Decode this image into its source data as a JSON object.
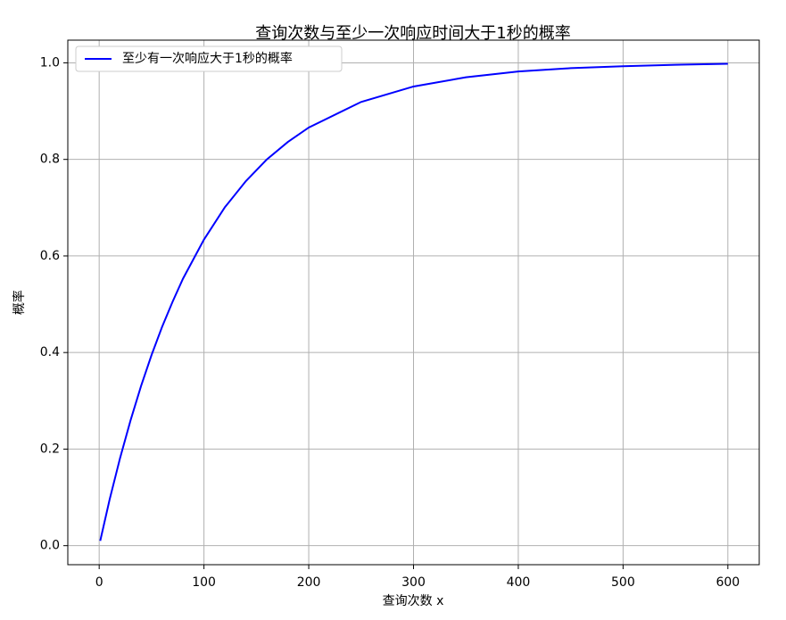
{
  "chart_data": {
    "type": "line",
    "title": "查询次数与至少一次响应时间大于1秒的概率",
    "xlabel": "查询次数 x",
    "ylabel": "概率",
    "x": [
      1,
      10,
      20,
      30,
      40,
      50,
      60,
      70,
      80,
      100,
      120,
      140,
      160,
      180,
      200,
      250,
      300,
      350,
      400,
      450,
      500,
      550,
      600
    ],
    "series": [
      {
        "name": "至少有一次响应大于1秒的概率",
        "color": "#0000ff",
        "values": [
          0.01,
          0.096,
          0.182,
          0.26,
          0.331,
          0.395,
          0.453,
          0.505,
          0.553,
          0.634,
          0.701,
          0.755,
          0.8,
          0.836,
          0.866,
          0.919,
          0.951,
          0.97,
          0.982,
          0.989,
          0.993,
          0.996,
          0.998
        ]
      }
    ],
    "xlim": [
      -29.95,
      629.95
    ],
    "xticks": [
      0,
      100,
      200,
      300,
      400,
      500,
      600
    ],
    "ylim": [
      -0.0394,
      1.047
    ],
    "yticks": [
      {
        "value": 0,
        "label": "0.0"
      },
      0.2,
      0.4,
      0.6,
      0.8,
      {
        "value": 1,
        "label": "1.0"
      }
    ],
    "grid": true,
    "legend": "upper left"
  }
}
